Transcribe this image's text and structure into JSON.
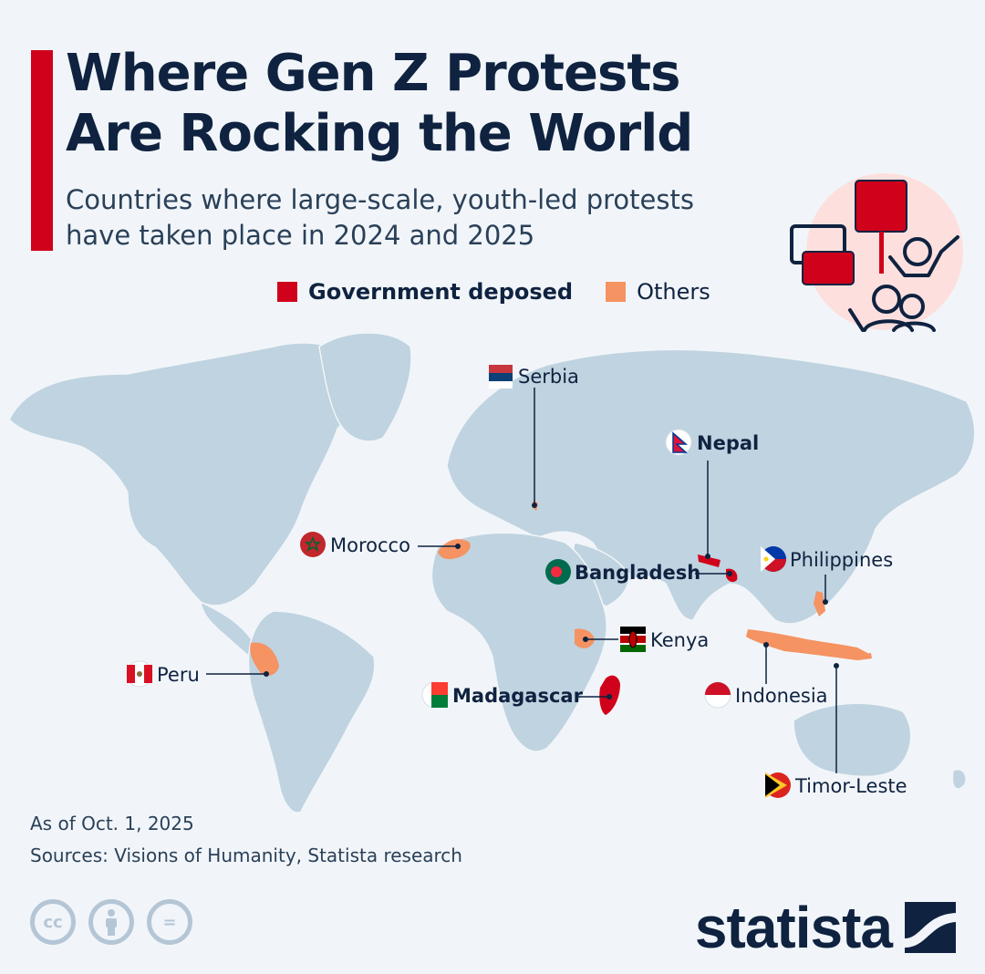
{
  "title": "Where Gen Z Protests\nAre Rocking the World",
  "subtitle": "Countries where large-scale, youth-led protests\nhave taken place in 2024 and 2025",
  "legend": [
    {
      "label": "Government deposed",
      "color": "#d0021b",
      "bold": true
    },
    {
      "label": "Others",
      "color": "#f59362",
      "bold": false
    }
  ],
  "colors": {
    "land": "#bfd3e0",
    "deposed": "#d0021b",
    "other": "#f59362",
    "text": "#0f2240"
  },
  "countries": [
    {
      "name": "Serbia",
      "category": "other",
      "bold": false,
      "flag": "serbia-flag"
    },
    {
      "name": "Nepal",
      "category": "deposed",
      "bold": true,
      "flag": "nepal-flag"
    },
    {
      "name": "Morocco",
      "category": "other",
      "bold": false,
      "flag": "morocco-flag"
    },
    {
      "name": "Bangladesh",
      "category": "deposed",
      "bold": true,
      "flag": "bangladesh-flag"
    },
    {
      "name": "Philippines",
      "category": "other",
      "bold": false,
      "flag": "philippines-flag"
    },
    {
      "name": "Kenya",
      "category": "other",
      "bold": false,
      "flag": "kenya-flag"
    },
    {
      "name": "Peru",
      "category": "other",
      "bold": false,
      "flag": "peru-flag"
    },
    {
      "name": "Madagascar",
      "category": "deposed",
      "bold": true,
      "flag": "madagascar-flag"
    },
    {
      "name": "Indonesia",
      "category": "other",
      "bold": false,
      "flag": "indonesia-flag"
    },
    {
      "name": "Timor-Leste",
      "category": "other",
      "bold": false,
      "flag": "timor-leste-flag"
    }
  ],
  "footer": {
    "date_note": "As of Oct. 1, 2025",
    "sources": "Sources: Visions of Humanity, Statista research"
  },
  "license_icons": [
    "cc-icon",
    "attribution-icon",
    "no-derivatives-icon"
  ],
  "license": {
    "cc": "cc",
    "nd": "="
  },
  "brand": {
    "name": "statista",
    "logo_icon": "statista-logo-icon"
  }
}
